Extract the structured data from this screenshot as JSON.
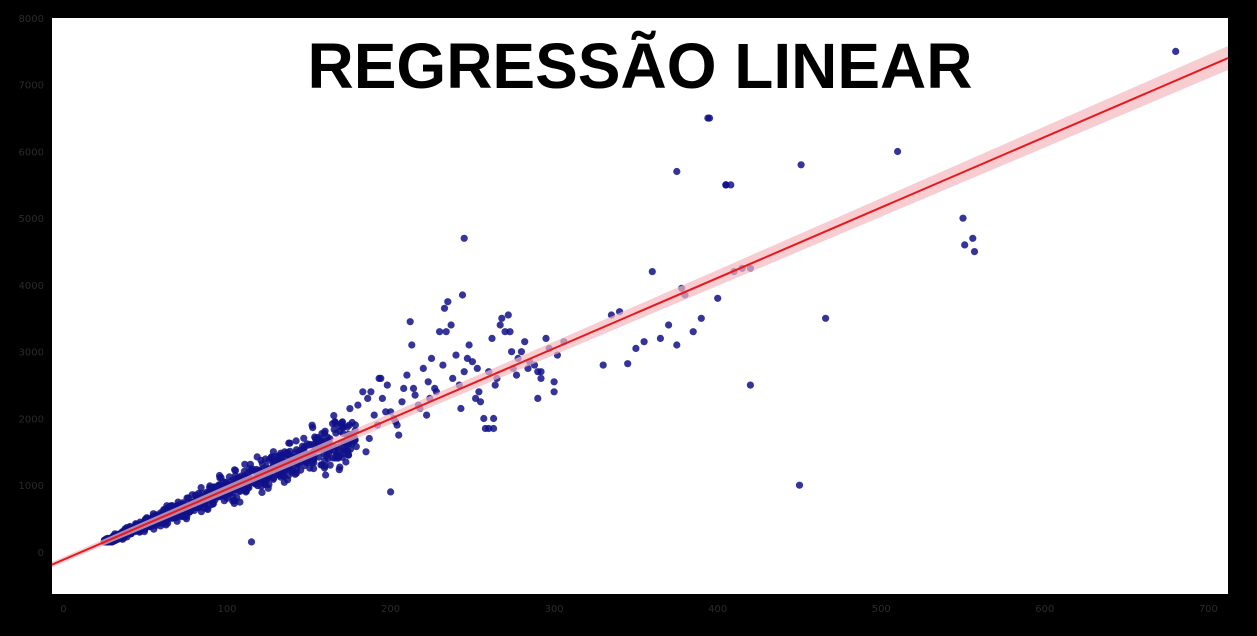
{
  "chart_data": {
    "type": "scatter",
    "title": "REGRESSÃO LINEAR",
    "xlabel": "",
    "ylabel": "",
    "xlim": [
      -7,
      712
    ],
    "ylim": [
      -630,
      8000
    ],
    "grid": false,
    "x_ticks": [
      0,
      100,
      200,
      300,
      400,
      500,
      600,
      700
    ],
    "y_ticks": [
      0,
      1000,
      2000,
      3000,
      4000,
      5000,
      6000,
      7000,
      8000
    ],
    "regression": {
      "x": [
        -7,
        712
      ],
      "y": [
        -190,
        7400
      ],
      "ci_halfwidth_start": 40,
      "ci_halfwidth_end": 180
    },
    "dense_cluster": {
      "x_min": 25,
      "x_max": 180,
      "slope": 10.55,
      "intercept": -120,
      "spread": 0.2
    },
    "series": [
      {
        "x": [
          180,
          185,
          188,
          190,
          192,
          195,
          198,
          200,
          202,
          205,
          208,
          210,
          212,
          215,
          218,
          220,
          222,
          225,
          228,
          230,
          232,
          235,
          238,
          240,
          242,
          245,
          248,
          250,
          252,
          255,
          258,
          260,
          262,
          265,
          268,
          270,
          272,
          275,
          278,
          280,
          285,
          290,
          295,
          300,
          183,
          187,
          193,
          197,
          203,
          207,
          213,
          217,
          223,
          227,
          233,
          237,
          243,
          247,
          253,
          257,
          263,
          267,
          273,
          277,
          282,
          288,
          292,
          297,
          302,
          306,
          186,
          194,
          204,
          214,
          224,
          234,
          244,
          254,
          264,
          274,
          284
        ],
        "y": [
          2200,
          1500,
          2400,
          2050,
          1900,
          2300,
          2500,
          2100,
          2000,
          1750,
          2450,
          2650,
          3450,
          2350,
          2150,
          2750,
          2050,
          2900,
          2400,
          3300,
          2800,
          3750,
          2600,
          2950,
          2500,
          2700,
          3100,
          2850,
          2300,
          2250,
          1850,
          2700,
          3200,
          2600,
          3500,
          3300,
          3550,
          2750,
          2900,
          3000,
          2850,
          2700,
          3200,
          2550,
          2400,
          1700,
          2600,
          2100,
          1950,
          2250,
          3100,
          2200,
          2550,
          2450,
          3650,
          3400,
          2150,
          2900,
          2750,
          2000,
          1850,
          3400,
          3300,
          2650,
          3150,
          2800,
          2700,
          3050,
          2950,
          3150,
          2300,
          2600,
          1900,
          2450,
          2300,
          3300,
          3850,
          2400,
          2500,
          3000,
          2750
        ]
      },
      {
        "x": [
          245,
          330,
          335,
          340,
          345,
          350,
          355,
          360,
          365,
          370,
          375,
          380,
          385,
          390,
          395,
          400,
          405,
          410,
          415,
          420,
          375,
          378,
          394,
          405,
          408,
          420,
          450,
          451,
          466,
          510,
          550,
          551,
          556,
          557,
          680,
          200,
          115,
          260,
          263,
          290,
          292,
          300
        ],
        "y": [
          4700,
          2800,
          3550,
          3600,
          2820,
          3050,
          3150,
          4200,
          3200,
          3400,
          3100,
          3850,
          3300,
          3500,
          6500,
          3800,
          5500,
          4200,
          4250,
          4250,
          5700,
          3950,
          6500,
          5500,
          5500,
          2500,
          1000,
          5800,
          3500,
          6000,
          5000,
          4600,
          4700,
          4500,
          7500,
          900,
          150,
          1850,
          2000,
          2300,
          2600,
          2400
        ]
      }
    ],
    "colors": {
      "points": "#10108a",
      "line": "#e8191c",
      "band": "#f4b8bf",
      "plot_bg": "#ffffff",
      "frame": "#000000"
    }
  }
}
